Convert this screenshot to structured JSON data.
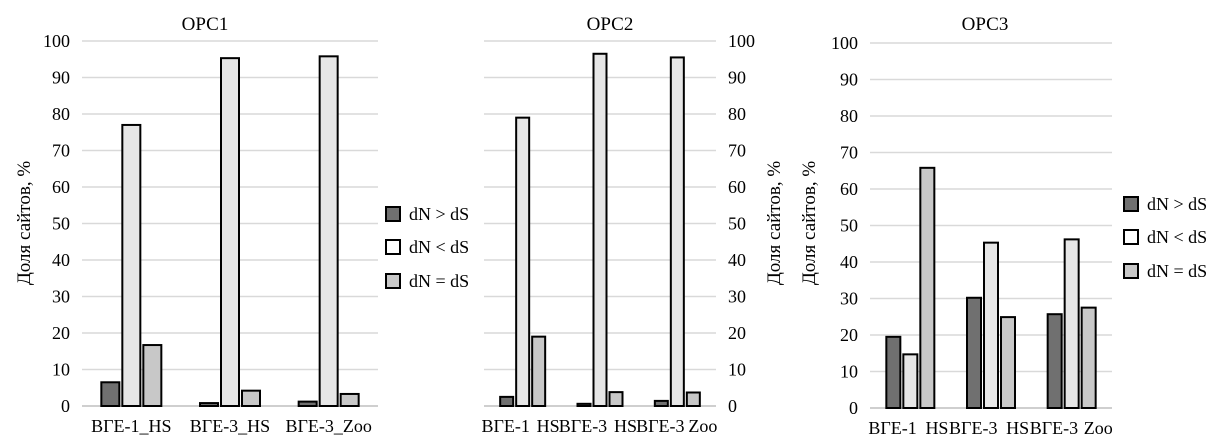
{
  "chart_data": [
    {
      "type": "bar",
      "title": "ОРС1",
      "ylabel": "Доля сайтов, %",
      "ylim": [
        0,
        100
      ],
      "y_ticks": [
        "0",
        "10",
        "20",
        "30",
        "40",
        "50",
        "60",
        "70",
        "80",
        "90",
        "100"
      ],
      "grid": true,
      "categories": [
        "ВГЕ-1_HS",
        "ВГЕ-3_HS",
        "ВГЕ-3_Zoo"
      ],
      "series": [
        {
          "name": "dN > dS",
          "values": [
            6.5,
            0.8,
            1.2
          ]
        },
        {
          "name": "dN < dS",
          "values": [
            77,
            95.3,
            95.8
          ]
        },
        {
          "name": "dN = dS",
          "values": [
            16.7,
            4.2,
            3.3
          ]
        }
      ],
      "legend": "right"
    },
    {
      "type": "bar",
      "title": "ОРС2",
      "ylabel": "Доля сайтов, %",
      "ylim": [
        0,
        100
      ],
      "y_ticks": [
        "0",
        "10",
        "20",
        "30",
        "40",
        "50",
        "60",
        "70",
        "80",
        "90",
        "100"
      ],
      "y_axis_side": "right",
      "grid": true,
      "categories": [
        "ВГЕ-1 HS",
        "ВГЕ-3 HS",
        "ВГЕ-3 Zoo"
      ],
      "category_labels": [
        [
          "ВГЕ-1",
          "HS"
        ],
        [
          "ВГЕ-3",
          "HS"
        ],
        [
          "ВГЕ-3",
          "Zoo"
        ]
      ],
      "series": [
        {
          "name": "dN > dS",
          "values": [
            2.5,
            0.6,
            1.4
          ]
        },
        {
          "name": "dN < dS",
          "values": [
            79,
            96.5,
            95.5
          ]
        },
        {
          "name": "dN = dS",
          "values": [
            19,
            3.8,
            3.7
          ]
        }
      ]
    },
    {
      "type": "bar",
      "title": "ОРС3",
      "ylabel": "Доля сайтов, %",
      "ylim": [
        0,
        100
      ],
      "y_ticks": [
        "0",
        "10",
        "20",
        "30",
        "40",
        "50",
        "60",
        "70",
        "80",
        "90",
        "100"
      ],
      "grid": true,
      "categories": [
        "ВГЕ-1 HS",
        "ВГЕ-3 HS",
        "ВГЕ-3 Zoo"
      ],
      "category_labels": [
        [
          "ВГЕ-1",
          "HS"
        ],
        [
          "ВГЕ-3",
          "HS"
        ],
        [
          "ВГЕ-3",
          "Zoo"
        ]
      ],
      "series": [
        {
          "name": "dN > dS",
          "values": [
            19.5,
            30.2,
            25.7
          ]
        },
        {
          "name": "dN < dS",
          "values": [
            14.7,
            45.3,
            46.2
          ]
        },
        {
          "name": "dN = dS",
          "values": [
            65.8,
            24.9,
            27.5
          ]
        }
      ],
      "legend": "right"
    }
  ],
  "colors": {
    "dN > dS": "#707070",
    "dN < dS": "#ffffff",
    "dN = dS": "#d9d9d9",
    "dN < dS (tall)": "#e6e6e6",
    "grid": "#d9d9d9"
  }
}
